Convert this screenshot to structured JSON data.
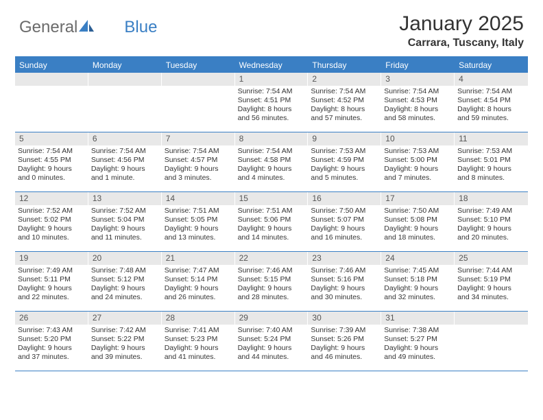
{
  "logo": {
    "text1": "General",
    "text2": "Blue"
  },
  "title": "January 2025",
  "location": "Carrara, Tuscany, Italy",
  "colors": {
    "accent": "#3a7fc4",
    "daybar": "#e8e8e8",
    "text": "#333333",
    "logo_gray": "#6b6b6b",
    "background": "#ffffff"
  },
  "typography": {
    "title_fontsize": 30,
    "location_fontsize": 16,
    "dow_fontsize": 12,
    "cell_fontsize": 10.5
  },
  "layout": {
    "columns": 7,
    "rows": 5,
    "leading_blanks": 3
  },
  "dow": [
    "Sunday",
    "Monday",
    "Tuesday",
    "Wednesday",
    "Thursday",
    "Friday",
    "Saturday"
  ],
  "days": [
    {
      "n": 1,
      "sunrise": "7:54 AM",
      "sunset": "4:51 PM",
      "daylight": "8 hours and 56 minutes."
    },
    {
      "n": 2,
      "sunrise": "7:54 AM",
      "sunset": "4:52 PM",
      "daylight": "8 hours and 57 minutes."
    },
    {
      "n": 3,
      "sunrise": "7:54 AM",
      "sunset": "4:53 PM",
      "daylight": "8 hours and 58 minutes."
    },
    {
      "n": 4,
      "sunrise": "7:54 AM",
      "sunset": "4:54 PM",
      "daylight": "8 hours and 59 minutes."
    },
    {
      "n": 5,
      "sunrise": "7:54 AM",
      "sunset": "4:55 PM",
      "daylight": "9 hours and 0 minutes."
    },
    {
      "n": 6,
      "sunrise": "7:54 AM",
      "sunset": "4:56 PM",
      "daylight": "9 hours and 1 minute."
    },
    {
      "n": 7,
      "sunrise": "7:54 AM",
      "sunset": "4:57 PM",
      "daylight": "9 hours and 3 minutes."
    },
    {
      "n": 8,
      "sunrise": "7:54 AM",
      "sunset": "4:58 PM",
      "daylight": "9 hours and 4 minutes."
    },
    {
      "n": 9,
      "sunrise": "7:53 AM",
      "sunset": "4:59 PM",
      "daylight": "9 hours and 5 minutes."
    },
    {
      "n": 10,
      "sunrise": "7:53 AM",
      "sunset": "5:00 PM",
      "daylight": "9 hours and 7 minutes."
    },
    {
      "n": 11,
      "sunrise": "7:53 AM",
      "sunset": "5:01 PM",
      "daylight": "9 hours and 8 minutes."
    },
    {
      "n": 12,
      "sunrise": "7:52 AM",
      "sunset": "5:02 PM",
      "daylight": "9 hours and 10 minutes."
    },
    {
      "n": 13,
      "sunrise": "7:52 AM",
      "sunset": "5:04 PM",
      "daylight": "9 hours and 11 minutes."
    },
    {
      "n": 14,
      "sunrise": "7:51 AM",
      "sunset": "5:05 PM",
      "daylight": "9 hours and 13 minutes."
    },
    {
      "n": 15,
      "sunrise": "7:51 AM",
      "sunset": "5:06 PM",
      "daylight": "9 hours and 14 minutes."
    },
    {
      "n": 16,
      "sunrise": "7:50 AM",
      "sunset": "5:07 PM",
      "daylight": "9 hours and 16 minutes."
    },
    {
      "n": 17,
      "sunrise": "7:50 AM",
      "sunset": "5:08 PM",
      "daylight": "9 hours and 18 minutes."
    },
    {
      "n": 18,
      "sunrise": "7:49 AM",
      "sunset": "5:10 PM",
      "daylight": "9 hours and 20 minutes."
    },
    {
      "n": 19,
      "sunrise": "7:49 AM",
      "sunset": "5:11 PM",
      "daylight": "9 hours and 22 minutes."
    },
    {
      "n": 20,
      "sunrise": "7:48 AM",
      "sunset": "5:12 PM",
      "daylight": "9 hours and 24 minutes."
    },
    {
      "n": 21,
      "sunrise": "7:47 AM",
      "sunset": "5:14 PM",
      "daylight": "9 hours and 26 minutes."
    },
    {
      "n": 22,
      "sunrise": "7:46 AM",
      "sunset": "5:15 PM",
      "daylight": "9 hours and 28 minutes."
    },
    {
      "n": 23,
      "sunrise": "7:46 AM",
      "sunset": "5:16 PM",
      "daylight": "9 hours and 30 minutes."
    },
    {
      "n": 24,
      "sunrise": "7:45 AM",
      "sunset": "5:18 PM",
      "daylight": "9 hours and 32 minutes."
    },
    {
      "n": 25,
      "sunrise": "7:44 AM",
      "sunset": "5:19 PM",
      "daylight": "9 hours and 34 minutes."
    },
    {
      "n": 26,
      "sunrise": "7:43 AM",
      "sunset": "5:20 PM",
      "daylight": "9 hours and 37 minutes."
    },
    {
      "n": 27,
      "sunrise": "7:42 AM",
      "sunset": "5:22 PM",
      "daylight": "9 hours and 39 minutes."
    },
    {
      "n": 28,
      "sunrise": "7:41 AM",
      "sunset": "5:23 PM",
      "daylight": "9 hours and 41 minutes."
    },
    {
      "n": 29,
      "sunrise": "7:40 AM",
      "sunset": "5:24 PM",
      "daylight": "9 hours and 44 minutes."
    },
    {
      "n": 30,
      "sunrise": "7:39 AM",
      "sunset": "5:26 PM",
      "daylight": "9 hours and 46 minutes."
    },
    {
      "n": 31,
      "sunrise": "7:38 AM",
      "sunset": "5:27 PM",
      "daylight": "9 hours and 49 minutes."
    }
  ],
  "labels": {
    "sunrise": "Sunrise:",
    "sunset": "Sunset:",
    "daylight": "Daylight:"
  }
}
